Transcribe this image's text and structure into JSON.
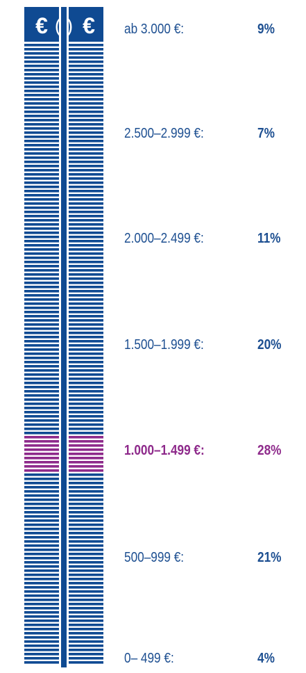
{
  "colors": {
    "bar": "#0f4a92",
    "highlight": "#8e2a8b",
    "background": "#ffffff",
    "label_text": "#1d4f91"
  },
  "header_icons": {
    "left_symbol": "€",
    "middle_symbol": "( )",
    "right_symbol": "€"
  },
  "brackets": [
    {
      "label": "ab 3.000 €:",
      "value": "9%",
      "highlighted": false
    },
    {
      "label": "2.500–2.999 €:",
      "value": "7%",
      "highlighted": false
    },
    {
      "label": "2.000–2.499 €:",
      "value": "11%",
      "highlighted": false
    },
    {
      "label": "1.500–1.999 €:",
      "value": "20%",
      "highlighted": false
    },
    {
      "label": "1.000–1.499 €:",
      "value": "28%",
      "highlighted": true
    },
    {
      "label": "500–999 €:",
      "value": "21%",
      "highlighted": false
    },
    {
      "label": "0– 499 €:",
      "value": "4%",
      "highlighted": false
    }
  ]
}
